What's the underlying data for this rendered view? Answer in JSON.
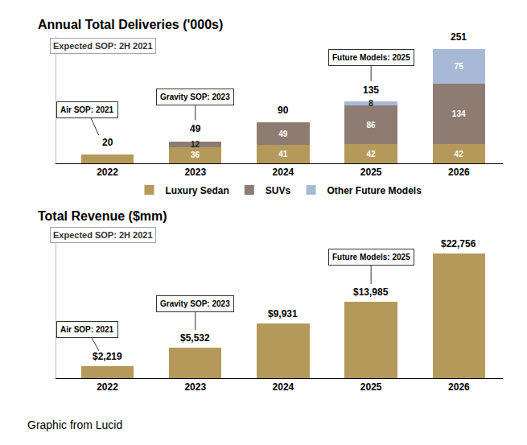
{
  "chart_data": [
    {
      "type": "bar",
      "title": "Annual Total Deliveries ('000s)",
      "subtitle": "Expected SOP: 2H 2021",
      "categories": [
        "2022",
        "2023",
        "2024",
        "2025",
        "2026"
      ],
      "series": [
        {
          "name": "Luxury Sedan",
          "color": "#b5995b",
          "values": [
            20,
            36,
            41,
            42,
            42
          ],
          "value_labels": [
            null,
            "36",
            "41",
            "42",
            "42"
          ]
        },
        {
          "name": "SUVs",
          "color": "#8e7c73",
          "values": [
            null,
            12,
            49,
            86,
            134
          ]
        },
        {
          "name": "Other Future Models",
          "color": "#a8b9d8",
          "values": [
            null,
            null,
            null,
            8,
            75
          ]
        }
      ],
      "totals": [
        20,
        49,
        90,
        135,
        251
      ],
      "annotations": [
        {
          "text": "Air SOP: 2021",
          "category": "2022"
        },
        {
          "text": "Gravity SOP: 2023",
          "category": "2023"
        },
        {
          "text": "Future Models: 2025",
          "category": "2025"
        }
      ],
      "stacked": true,
      "data_labels": true,
      "legend": "bottom",
      "grid": false,
      "tick_labels": "x",
      "ylim": [
        0,
        280
      ],
      "yticks": []
    },
    {
      "type": "bar",
      "title": "Total Revenue ($mm)",
      "subtitle": "Expected SOP: 2H 2021",
      "categories": [
        "2022",
        "2023",
        "2024",
        "2025",
        "2026"
      ],
      "values": [
        2219,
        5532,
        9931,
        13985,
        22756
      ],
      "value_labels": [
        "$2,219",
        "$5,532",
        "$9,931",
        "$13,985",
        "$22,756"
      ],
      "color": "#b5995b",
      "annotations": [
        {
          "text": "Air SOP: 2021",
          "category": "2022"
        },
        {
          "text": "Gravity SOP: 2023",
          "category": "2023"
        },
        {
          "text": "Future Models: 2025",
          "category": "2025"
        }
      ],
      "data_labels": true,
      "grid": false,
      "tick_labels": "x",
      "ylim": [
        0,
        25000
      ],
      "yticks": []
    }
  ],
  "caption": "Graphic from Lucid"
}
